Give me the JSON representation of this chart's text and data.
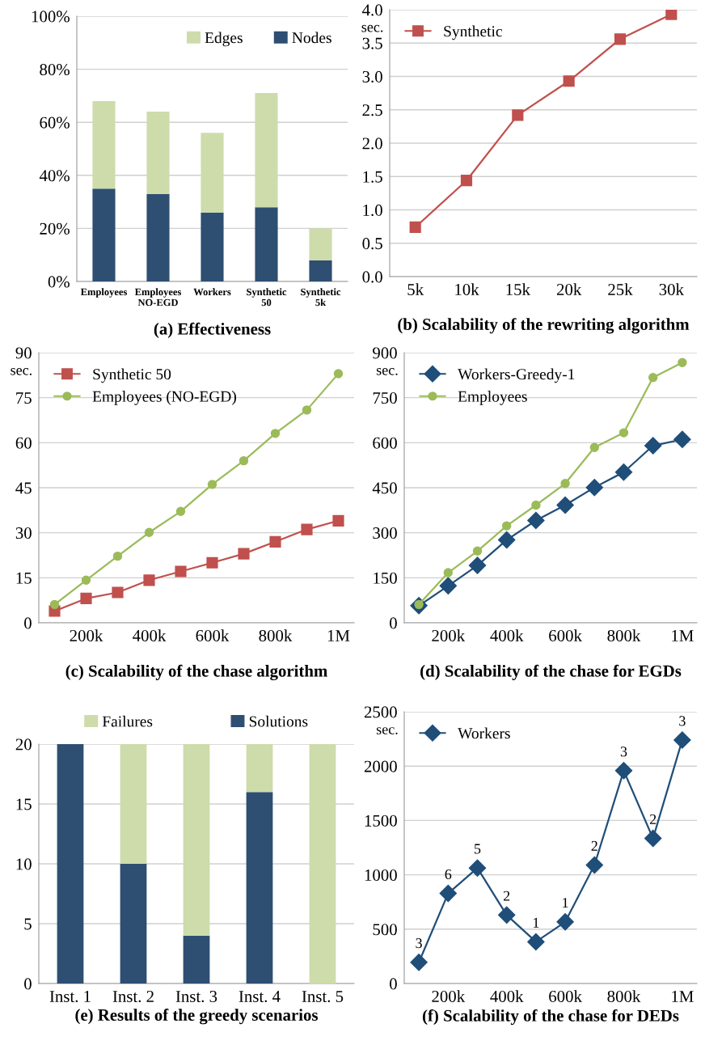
{
  "chart_data": [
    {
      "type": "bar",
      "title": "(a) Effectiveness",
      "stacked": true,
      "categories": [
        "Employees",
        "Employees\nNO-EGD",
        "Workers",
        "Synthetic\n50",
        "Synthetic\n5k"
      ],
      "series": [
        {
          "name": "Nodes",
          "color": "#2e4e72",
          "values": [
            35,
            33,
            26,
            28,
            8
          ]
        },
        {
          "name": "Edges",
          "color": "#cddcaa",
          "values": [
            33,
            31,
            30,
            43,
            12
          ]
        }
      ],
      "ylim": [
        0,
        100
      ],
      "yticks": [
        {
          "value": 0,
          "label": "0%"
        },
        {
          "value": 20,
          "label": "20%"
        },
        {
          "value": 40,
          "label": "40%"
        },
        {
          "value": 60,
          "label": "60%"
        },
        {
          "value": 80,
          "label": "80%"
        },
        {
          "value": 100,
          "label": "100%"
        }
      ],
      "grid": "y",
      "legend": "top right"
    },
    {
      "type": "line",
      "title": "(b) Scalability of the rewriting algorithm",
      "ylabel": "sec.",
      "categories": [
        "5k",
        "10k",
        "15k",
        "20k",
        "25k",
        "30k"
      ],
      "series": [
        {
          "name": "Synthetic",
          "color": "#c0504d",
          "marker": "square",
          "values": [
            0.74,
            1.44,
            2.42,
            2.93,
            3.56,
            3.93
          ]
        }
      ],
      "ylim": [
        0,
        4
      ],
      "yticks": [
        {
          "value": 0,
          "label": "0.0"
        },
        {
          "value": 0.5,
          "label": "0.5"
        },
        {
          "value": 1,
          "label": "1.0"
        },
        {
          "value": 1.5,
          "label": "1.5"
        },
        {
          "value": 2,
          "label": "2.0"
        },
        {
          "value": 2.5,
          "label": "2.5"
        },
        {
          "value": 3,
          "label": "3.0"
        },
        {
          "value": 3.5,
          "label": "3.5"
        },
        {
          "value": 4,
          "label": "4.0"
        }
      ],
      "grid": "y",
      "legend": "top left"
    },
    {
      "type": "line",
      "title": "(c) Scalability of the chase algorithm",
      "ylabel": "sec.",
      "categories": [
        null,
        "200k",
        null,
        "400k",
        null,
        "600k",
        null,
        "800k",
        null,
        "1M"
      ],
      "series": [
        {
          "name": "Synthetic 50",
          "color": "#c0504d",
          "marker": "square",
          "values": [
            3.9,
            8.1,
            10.1,
            14.2,
            17.1,
            20,
            23,
            27,
            31.1,
            34
          ]
        },
        {
          "name": "Employees (NO-EGD)",
          "color": "#9bbb59",
          "marker": "circle",
          "values": [
            6.1,
            14.2,
            22.2,
            30.1,
            37.1,
            46.1,
            54,
            63.1,
            70.9,
            83
          ]
        }
      ],
      "ylim": [
        0,
        90
      ],
      "yticks": [
        0,
        15,
        30,
        45,
        60,
        75,
        90
      ],
      "grid": "y",
      "legend": "top left"
    },
    {
      "type": "line",
      "title": "(d) Scalability of the chase for EGDs",
      "ylabel": "sec.",
      "categories": [
        null,
        "200k",
        null,
        "400k",
        null,
        "600k",
        null,
        "800k",
        null,
        "1M"
      ],
      "series": [
        {
          "name": "Workers-Greedy-1",
          "color": "#1f4e79",
          "marker": "diamond",
          "values": [
            57,
            123,
            191,
            276,
            341,
            392,
            451,
            502,
            590,
            611
          ]
        },
        {
          "name": "Employees",
          "color": "#9bbb59",
          "marker": "circle",
          "values": [
            61,
            167,
            239,
            323,
            392,
            464,
            584,
            633,
            817,
            867
          ]
        }
      ],
      "ylim": [
        0,
        900
      ],
      "yticks": [
        0,
        150,
        300,
        450,
        600,
        750,
        900
      ],
      "grid": "y",
      "legend": "top left"
    },
    {
      "type": "bar",
      "title": "(e) Results of the greedy scenarios",
      "stacked": true,
      "categories": [
        "Inst. 1",
        "Inst. 2",
        "Inst. 3",
        "Inst. 4",
        "Inst. 5"
      ],
      "series": [
        {
          "name": "Solutions",
          "color": "#2e4e72",
          "values": [
            20,
            10,
            4,
            16,
            0
          ]
        },
        {
          "name": "Failures",
          "color": "#cddcaa",
          "values": [
            0,
            10,
            16,
            4,
            20
          ]
        }
      ],
      "ylim": [
        0,
        20
      ],
      "yticks": [
        0,
        5,
        10,
        15,
        20
      ],
      "grid": "y",
      "legend": "top"
    },
    {
      "type": "line",
      "title": "(f) Scalability of the chase for DEDs",
      "ylabel": "sec.",
      "x": [
        100000,
        200000,
        300000,
        400000,
        500000,
        600000,
        700000,
        800000,
        900000,
        1000000
      ],
      "xlim": [
        50000,
        1050000
      ],
      "xticks": [
        {
          "value": 200000,
          "label": "200k"
        },
        {
          "value": 400000,
          "label": "400k"
        },
        {
          "value": 600000,
          "label": "600k"
        },
        {
          "value": 800000,
          "label": "800k"
        },
        {
          "value": 1000000,
          "label": "1M"
        }
      ],
      "series": [
        {
          "name": "Workers",
          "color": "#1f4e79",
          "marker": "diamond",
          "values": [
            195,
            829,
            1063,
            630,
            384,
            567,
            1090,
            1958,
            1335,
            2240
          ]
        }
      ],
      "annotations": [
        {
          "text": "3",
          "x": 100000,
          "y": 195
        },
        {
          "text": "6",
          "x": 200000,
          "y": 829
        },
        {
          "text": "5",
          "x": 300000,
          "y": 1063
        },
        {
          "text": "2",
          "x": 400000,
          "y": 630
        },
        {
          "text": "1",
          "x": 500000,
          "y": 384
        },
        {
          "text": "1",
          "x": 600000,
          "y": 567
        },
        {
          "text": "2",
          "x": 700000,
          "y": 1090
        },
        {
          "text": "3",
          "x": 800000,
          "y": 1958
        },
        {
          "text": "2",
          "x": 900000,
          "y": 1335
        },
        {
          "text": "3",
          "x": 1000000,
          "y": 2240
        }
      ],
      "ylim": [
        0,
        2500
      ],
      "yticks": [
        0,
        500,
        1000,
        1500,
        2000,
        2500
      ],
      "grid": "y",
      "legend": "top left"
    }
  ]
}
